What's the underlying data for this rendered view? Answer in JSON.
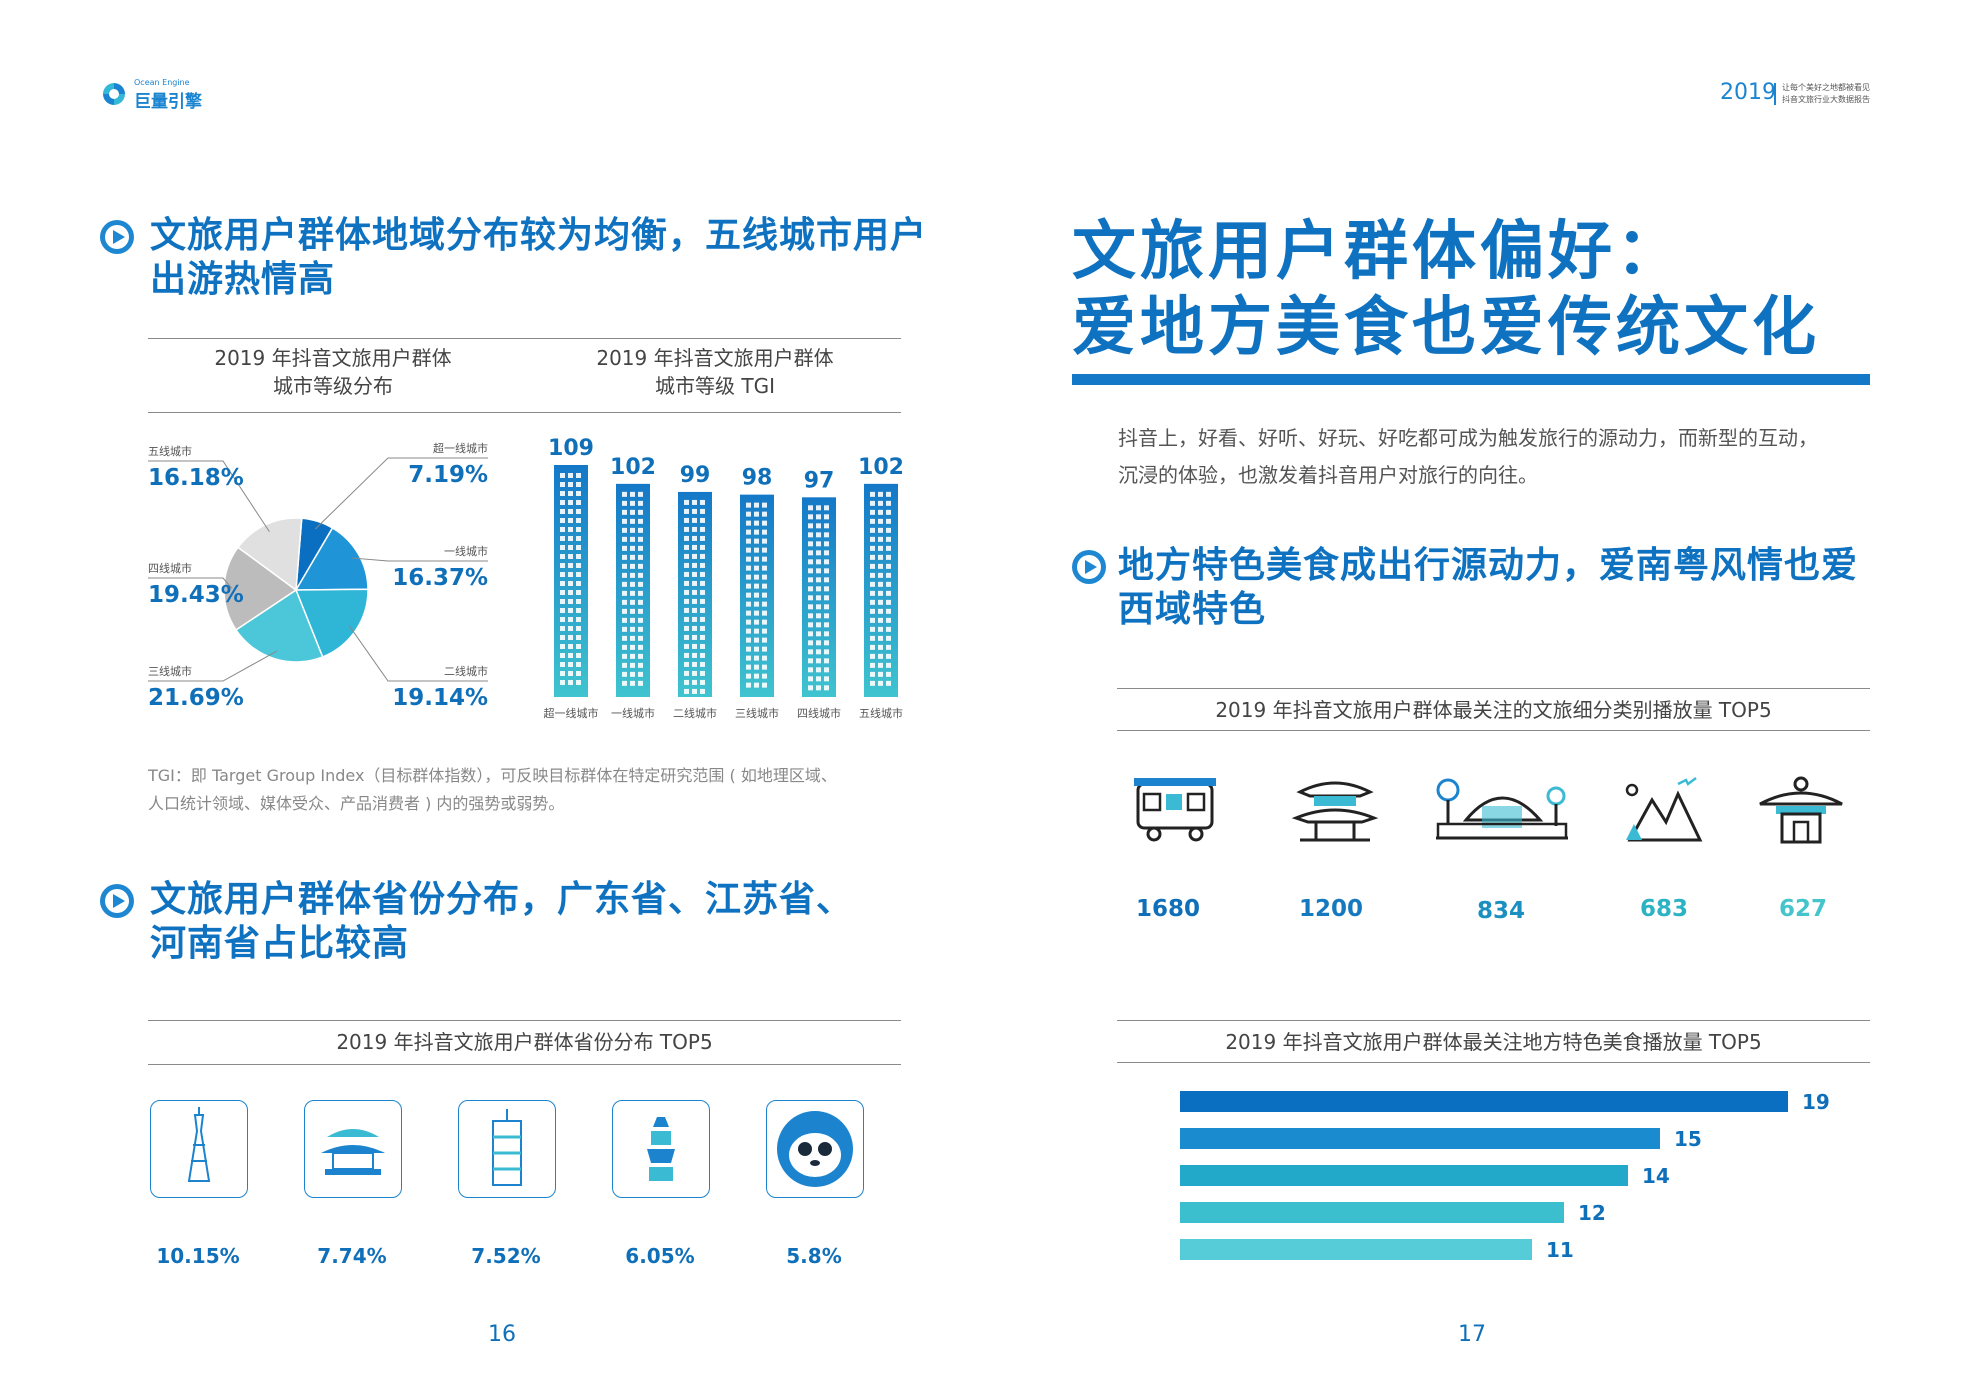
{
  "header": {
    "logo_en": "Ocean Engine",
    "logo_cn": "巨量引擎",
    "year": "2019",
    "tagline_1": "让每个美好之地都被看见",
    "tagline_2": "抖音文旅行业大数据报告"
  },
  "left": {
    "section1_title_l1": "文旅用户群体地域分布较为均衡，五线城市用户",
    "section1_title_l2": "出游热情高",
    "pie_title_l1": "2019 年抖音文旅用户群体",
    "pie_title_l2": "城市等级分布",
    "tgi_title_l1": "2019 年抖音文旅用户群体",
    "tgi_title_l2": "城市等级 TGI",
    "tgi_note_l1": "TGI：即 Target Group Index（目标群体指数），可反映目标群体在特定研究范围 ( 如地理区域、",
    "tgi_note_l2": "人口统计领域、媒体受众、产品消费者 ) 内的强势或弱势。",
    "section2_title_l1": "文旅用户群体省份分布，广东省、江苏省、",
    "section2_title_l2": "河南省占比较高",
    "province_title": "2019 年抖音文旅用户群体省份分布 TOP5",
    "provinces": [
      {
        "icon": "canton-tower-icon",
        "value": "10.15%"
      },
      {
        "icon": "pavilion-icon",
        "value": "7.74%"
      },
      {
        "icon": "tower-building-icon",
        "value": "7.52%"
      },
      {
        "icon": "pagoda-icon",
        "value": "6.05%"
      },
      {
        "icon": "panda-icon",
        "value": "5.8%"
      }
    ],
    "page_number": "16"
  },
  "right": {
    "main_title_l1": "文旅用户群体偏好：",
    "main_title_l2": "爱地方美食也爱传统文化",
    "intro_l1": "抖音上，好看、好听、好玩、好吃都可成为触发旅行的源动力，而新型的互动，",
    "intro_l2": "沉浸的体验，也激发着抖音用户对旅行的向往。",
    "section_title_l1": "地方特色美食成出行源动力，爱南粤风情也爱",
    "section_title_l2": "西域特色",
    "category_title": "2019 年抖音文旅用户群体最关注的文旅细分类别播放量 TOP5",
    "categories": [
      {
        "icon": "tram-icon",
        "value": "1680",
        "color": "#0f6fb8"
      },
      {
        "icon": "temple-gate-icon",
        "value": "1200",
        "color": "#1479bf"
      },
      {
        "icon": "park-building-icon",
        "value": "834",
        "color": "#1b8fbf"
      },
      {
        "icon": "mountains-icon",
        "value": "683",
        "color": "#2bb3c4"
      },
      {
        "icon": "temple-roof-icon",
        "value": "627",
        "color": "#45c4cc"
      }
    ],
    "food_title": "2019 年抖音文旅用户群体最关注地方特色美食播放量 TOP5",
    "page_number": "17"
  },
  "chart_data": [
    {
      "type": "pie",
      "title": "2019 年抖音文旅用户群体城市等级分布",
      "categories": [
        "超一线城市",
        "一线城市",
        "二线城市",
        "三线城市",
        "四线城市",
        "五线城市"
      ],
      "values": [
        7.19,
        16.37,
        19.14,
        21.69,
        19.43,
        16.18
      ],
      "labels": [
        "7.19%",
        "16.37%",
        "19.14%",
        "21.69%",
        "19.43%",
        "16.18%"
      ],
      "colors": [
        "#0a6fc0",
        "#1f95d8",
        "#2fb6d6",
        "#4cc6d9",
        "#bcbcbc",
        "#e0e0e0"
      ]
    },
    {
      "type": "bar",
      "title": "2019 年抖音文旅用户群体城市等级 TGI",
      "categories": [
        "超一线城市",
        "一线城市",
        "二线城市",
        "三线城市",
        "四线城市",
        "五线城市"
      ],
      "values": [
        109,
        102,
        99,
        98,
        97,
        102
      ]
    },
    {
      "type": "bar",
      "orientation": "horizontal",
      "title": "2019 年抖音文旅用户群体最关注地方特色美食播放量 TOP5",
      "values": [
        19,
        15,
        14,
        12,
        11
      ],
      "colors": [
        "#0a6fc0",
        "#1a8bcf",
        "#22a8c9",
        "#3bbfcf",
        "#55ccd8"
      ]
    }
  ]
}
